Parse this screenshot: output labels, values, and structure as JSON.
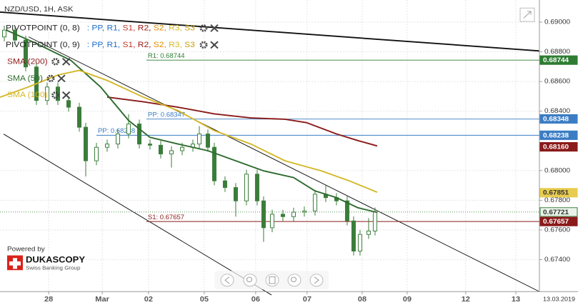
{
  "chart_data": {
    "type": "candlestick",
    "title": "NZD/USD, 1H, ASK",
    "xlim": [
      0,
      251.7
    ],
    "ylim": [
      0.67185,
      0.69149
    ],
    "grid": true,
    "xticks": [
      {
        "value": 22.7,
        "label": "28"
      },
      {
        "value": 47.7,
        "label": "Mar"
      },
      {
        "value": 69.3,
        "label": "02"
      },
      {
        "value": 95.3,
        "label": "05"
      },
      {
        "value": 119.3,
        "label": "06"
      },
      {
        "value": 143.3,
        "label": "07"
      },
      {
        "value": 169,
        "label": "08"
      },
      {
        "value": 190,
        "label": "09"
      },
      {
        "value": 217.3,
        "label": "12"
      },
      {
        "value": 240.7,
        "label": "13"
      }
    ],
    "yticks": [
      {
        "value": 0.69,
        "label": "0.69000"
      },
      {
        "value": 0.688,
        "label": "0.68800"
      },
      {
        "value": 0.686,
        "label": "0.68600"
      },
      {
        "value": 0.684,
        "label": "0.68400"
      },
      {
        "value": 0.68,
        "label": "0.68000"
      },
      {
        "value": 0.678,
        "label": "0.67800"
      },
      {
        "value": 0.676,
        "label": "0.67600"
      },
      {
        "value": 0.674,
        "label": "0.67400"
      }
    ],
    "candles": {
      "up_color": "#ffffff",
      "down_color": "#3a7d3a",
      "outline": "#3a7d3a",
      "x": [
        2,
        7,
        12,
        17,
        22,
        27,
        32,
        37,
        40,
        45,
        50,
        55,
        60,
        65,
        70,
        75,
        80,
        85,
        90,
        93,
        97,
        100,
        105,
        110,
        115,
        120,
        123,
        127,
        132,
        137,
        142,
        147,
        152,
        157,
        162,
        165,
        168,
        172,
        175
      ],
      "open": [
        0.689,
        0.68946,
        0.68879,
        0.68698,
        0.68472,
        0.68563,
        0.68472,
        0.68427,
        0.68292,
        0.68066,
        0.68157,
        0.68179,
        0.68247,
        0.68314,
        0.68179,
        0.68171,
        0.68112,
        0.68134,
        0.68157,
        0.68179,
        0.68247,
        0.68157,
        0.67931,
        0.67886,
        0.67796,
        0.67976,
        0.67796,
        0.67615,
        0.67706,
        0.6769,
        0.6772,
        0.67728,
        0.67841,
        0.67818,
        0.67796,
        0.67661,
        0.67458,
        0.6757,
        0.67593
      ],
      "high": [
        0.68976,
        0.68976,
        0.68909,
        0.68728,
        0.68593,
        0.68593,
        0.68502,
        0.68457,
        0.68322,
        0.68187,
        0.68209,
        0.68277,
        0.6838,
        0.68344,
        0.68209,
        0.68201,
        0.68164,
        0.68187,
        0.68209,
        0.683,
        0.68277,
        0.68187,
        0.67961,
        0.67916,
        0.68006,
        0.68006,
        0.67826,
        0.67736,
        0.67736,
        0.6775,
        0.67758,
        0.67871,
        0.679,
        0.67848,
        0.67826,
        0.67691,
        0.676,
        0.6768,
        0.67751
      ],
      "low": [
        0.6887,
        0.68849,
        0.68668,
        0.68442,
        0.68442,
        0.68442,
        0.68397,
        0.68262,
        0.6796,
        0.68036,
        0.68127,
        0.68149,
        0.68217,
        0.68149,
        0.68141,
        0.68082,
        0.6802,
        0.68104,
        0.68127,
        0.68149,
        0.68127,
        0.67901,
        0.67856,
        0.6769,
        0.67766,
        0.67766,
        0.6752,
        0.67585,
        0.6766,
        0.6766,
        0.6769,
        0.67698,
        0.67788,
        0.67766,
        0.67631,
        0.67428,
        0.67428,
        0.6754,
        0.67563
      ],
      "close": [
        0.68946,
        0.68879,
        0.68698,
        0.68472,
        0.68563,
        0.68472,
        0.68427,
        0.68292,
        0.68066,
        0.68157,
        0.68179,
        0.68247,
        0.68314,
        0.68179,
        0.68171,
        0.68112,
        0.68134,
        0.68157,
        0.68179,
        0.68247,
        0.68157,
        0.67931,
        0.67886,
        0.67796,
        0.67976,
        0.67796,
        0.67615,
        0.67706,
        0.6769,
        0.6772,
        0.67728,
        0.67841,
        0.67818,
        0.67796,
        0.67661,
        0.67458,
        0.6757,
        0.67593,
        0.67721
      ]
    },
    "series": [
      {
        "name": "SMA (200)",
        "color": "#8b1a1a",
        "x": [
          50,
          67,
          83,
          100,
          117,
          133,
          143,
          157,
          167,
          176
        ],
        "values": [
          0.68495,
          0.68463,
          0.68427,
          0.68382,
          0.68355,
          0.68346,
          0.68323,
          0.68247,
          0.68202,
          0.68166
        ]
      },
      {
        "name": "SMA (50)",
        "color": "#2e6b2e",
        "x": [
          3,
          17,
          33,
          47,
          60,
          70,
          83,
          97,
          110,
          123,
          137,
          147,
          157,
          167,
          176
        ],
        "values": [
          0.68946,
          0.68856,
          0.68743,
          0.68562,
          0.68337,
          0.68224,
          0.68179,
          0.68134,
          0.68066,
          0.67998,
          0.67953,
          0.67863,
          0.67818,
          0.6775,
          0.67718
        ]
      },
      {
        "name": "SMA (100)",
        "color": "#d4b82a",
        "x": [
          0,
          13,
          27,
          37,
          50,
          67,
          83,
          100,
          117,
          133,
          150,
          163,
          176
        ],
        "values": [
          0.68494,
          0.68562,
          0.68644,
          0.68675,
          0.68607,
          0.68494,
          0.68404,
          0.68269,
          0.68179,
          0.68066,
          0.67998,
          0.67931,
          0.67854
        ]
      }
    ],
    "pivot_indicators": [
      {
        "name": "PIVOTPOINT (0, 8)",
        "levels": [
          ": PP,",
          " R1,",
          " S1,",
          " R2,",
          " S2,",
          " R3,",
          " S3"
        ]
      },
      {
        "name": "PIVOTPOINT (0, 9)",
        "levels": [
          ": PP,",
          " R1,",
          " S1,",
          " R2,",
          " S2,",
          " R3,",
          " S3"
        ]
      }
    ],
    "level_colors": [
      "#1f6fc9",
      "#1f6fc9",
      "#c0392b",
      "#a01818",
      "#e08a00",
      "#d4b82a",
      "#c9a000"
    ],
    "pivot_lines": [
      {
        "label": "R1: 0.68744",
        "value": 0.68744,
        "x": 68.3,
        "color": "#2e7d32"
      },
      {
        "label": "PP: 0.68347",
        "value": 0.68347,
        "x": 68.3,
        "color": "#3b7dc4"
      },
      {
        "label": "PP: 0.68238",
        "value": 0.68238,
        "x": 45,
        "color": "#3b7dc4"
      },
      {
        "label": "S1: 0.67657",
        "value": 0.67657,
        "x": 68.3,
        "color": "#8b1a1a"
      }
    ],
    "price_markers": [
      {
        "value": 0.68744,
        "color": "#2e7d32",
        "text_color": "#ffffff"
      },
      {
        "value": 0.68348,
        "color": "#3b7dc4",
        "text_color": "#ffffff"
      },
      {
        "value": 0.68238,
        "color": "#3b7dc4",
        "text_color": "#ffffff"
      },
      {
        "value": 0.6816,
        "label": "0.68160",
        "color": "#8b1a1a",
        "text_color": "#ffffff"
      },
      {
        "value": 0.67851,
        "color": "#e8cc50",
        "text_color": "#333333"
      },
      {
        "value": 0.67721,
        "color": "#e9f3e9",
        "text_color": "#333333"
      },
      {
        "value": 0.67657,
        "color": "#8b1a1a",
        "text_color": "#ffffff"
      }
    ],
    "current_price": 0.67721,
    "date": "13.03.2019",
    "branding": {
      "powered_by": "Powered by",
      "name": "DUKASCOPY",
      "tagline": "Swiss Banking Group"
    }
  }
}
